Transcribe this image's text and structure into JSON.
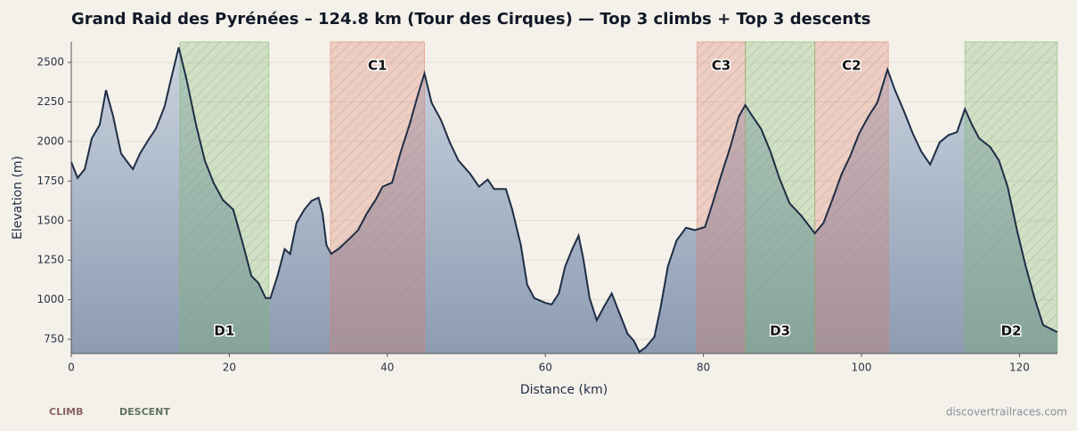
{
  "chart_data": {
    "type": "area",
    "title": "Grand Raid des Pyrénées – 124.8 km (Tour des Cirques) — Top 3 climbs + Top 3 descents",
    "xlabel": "Distance (km)",
    "ylabel": "Elevation (m)",
    "source": "discovertrailraces.com",
    "xlim": [
      0,
      124.8
    ],
    "ylim": [
      660,
      2630
    ],
    "xticks": [
      0,
      20,
      40,
      60,
      80,
      100,
      120
    ],
    "yticks": [
      750,
      1000,
      1250,
      1500,
      1750,
      2000,
      2250,
      2500
    ],
    "grid": true,
    "color": "#1f2d45",
    "x": [
      0,
      0.8,
      1.7,
      2.6,
      3.6,
      4.4,
      5.3,
      6.3,
      7.1,
      7.8,
      8.7,
      9.7,
      10.7,
      11.8,
      12.6,
      13.6,
      14.6,
      15.8,
      16.9,
      18.0,
      19.2,
      20.5,
      21.6,
      22.8,
      23.7,
      24.6,
      25.2,
      26.1,
      27.0,
      27.7,
      28.5,
      29.5,
      30.4,
      31.3,
      31.8,
      32.3,
      32.9,
      33.8,
      35.2,
      36.3,
      37.4,
      38.5,
      39.4,
      40.6,
      41.7,
      42.8,
      43.9,
      44.7,
      45.6,
      46.8,
      47.9,
      49.0,
      50.5,
      51.6,
      52.7,
      53.5,
      55.0,
      55.8,
      56.9,
      57.7,
      58.6,
      60.0,
      60.8,
      61.7,
      62.5,
      63.4,
      64.2,
      64.8,
      65.6,
      66.5,
      67.4,
      68.4,
      69.3,
      70.4,
      71.2,
      71.9,
      72.7,
      73.8,
      74.6,
      75.5,
      76.6,
      77.8,
      78.9,
      80.2,
      81.1,
      82.3,
      83.4,
      84.5,
      85.3,
      86.2,
      87.3,
      88.5,
      89.6,
      90.9,
      92.4,
      94.1,
      95.2,
      96.3,
      97.5,
      98.6,
      99.7,
      100.9,
      102.0,
      103.3,
      104.2,
      105.4,
      106.5,
      107.6,
      108.7,
      109.9,
      111.0,
      112.1,
      113.1,
      114.0,
      114.9,
      116.3,
      117.4,
      118.5,
      119.7,
      120.8,
      121.9,
      123.0,
      124.8
    ],
    "values": [
      1870,
      1770,
      1825,
      2020,
      2105,
      2325,
      2160,
      1925,
      1870,
      1825,
      1925,
      2005,
      2080,
      2220,
      2390,
      2595,
      2390,
      2105,
      1880,
      1740,
      1630,
      1570,
      1375,
      1150,
      1105,
      1010,
      1010,
      1150,
      1320,
      1290,
      1485,
      1570,
      1625,
      1645,
      1545,
      1345,
      1290,
      1320,
      1385,
      1440,
      1545,
      1630,
      1715,
      1740,
      1935,
      2105,
      2300,
      2430,
      2245,
      2135,
      1995,
      1880,
      1795,
      1715,
      1760,
      1700,
      1700,
      1570,
      1345,
      1095,
      1010,
      980,
      970,
      1040,
      1210,
      1320,
      1405,
      1260,
      1010,
      870,
      955,
      1040,
      925,
      785,
      740,
      670,
      700,
      765,
      955,
      1210,
      1375,
      1455,
      1440,
      1460,
      1600,
      1795,
      1965,
      2160,
      2230,
      2160,
      2080,
      1935,
      1770,
      1610,
      1530,
      1420,
      1485,
      1630,
      1795,
      1910,
      2050,
      2160,
      2245,
      2455,
      2330,
      2190,
      2050,
      1935,
      1855,
      1995,
      2040,
      2060,
      2205,
      2105,
      2020,
      1965,
      1880,
      1715,
      1435,
      1210,
      1010,
      840,
      795
    ],
    "climbs": {
      "name": "CLIMB",
      "color": "#e07a66",
      "segments": [
        {
          "label": "C1",
          "start": 32.8,
          "end": 44.7
        },
        {
          "label": "C2",
          "start": 94.1,
          "end": 103.4
        },
        {
          "label": "C3",
          "start": 79.2,
          "end": 85.3
        }
      ]
    },
    "descents": {
      "name": "DESCENT",
      "color": "#7cb86a",
      "segments": [
        {
          "label": "D1",
          "start": 13.75,
          "end": 25.0
        },
        {
          "label": "D2",
          "start": 113.1,
          "end": 124.8
        },
        {
          "label": "D3",
          "start": 85.3,
          "end": 94.1
        }
      ]
    }
  }
}
